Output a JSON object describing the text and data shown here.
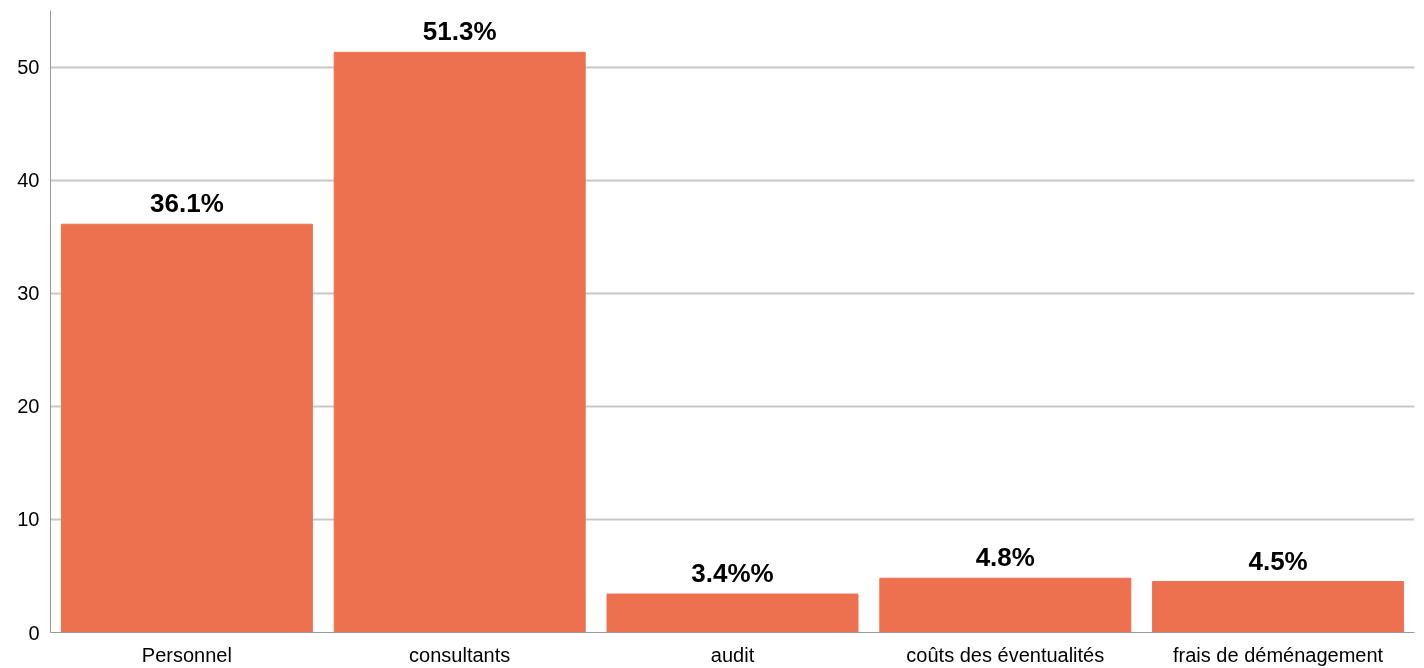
{
  "chart_data": {
    "type": "bar",
    "categories": [
      "Personnel",
      "consultants",
      "audit",
      "coûts des éventualités",
      "frais de déménagement"
    ],
    "values": [
      36.1,
      51.3,
      3.4,
      4.8,
      4.5
    ],
    "value_labels": [
      "36.1%",
      "51.3%",
      "3.4%%",
      "4.8%",
      "4.5%"
    ],
    "color": "#ed714f",
    "ylim": [
      0,
      55
    ],
    "yticks": [
      0,
      10,
      20,
      30,
      40,
      50
    ],
    "grid": "y"
  }
}
